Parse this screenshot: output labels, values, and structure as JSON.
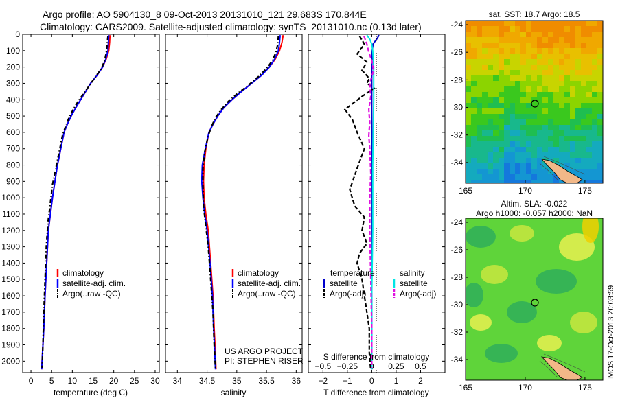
{
  "header": {
    "line1": "Argo profile: AO 5904130_8 09-Oct-2013 20131010_121 29.683S 170.844E",
    "line2": "Climatology: CARS2009. Satellite-adjusted climatology: synTS_20131010.nc (0.13d later)"
  },
  "colors": {
    "climatology": "#ff0000",
    "satellite": "#0000ff",
    "argo": "#000000",
    "t_satellite": "#0000cc",
    "s_satellite": "#00e5e5",
    "s_argo": "#e010e0"
  },
  "chart_data": [
    {
      "type": "line",
      "xlabel": "temperature (deg C)",
      "xlim": [
        -2,
        31
      ],
      "xticks": [
        0,
        5,
        10,
        15,
        20,
        25,
        30
      ],
      "ylim": [
        2070,
        0
      ],
      "yticks": [
        0,
        100,
        200,
        300,
        400,
        500,
        600,
        700,
        800,
        900,
        1000,
        1100,
        1200,
        1300,
        1400,
        1500,
        1600,
        1700,
        1800,
        1900,
        2000
      ],
      "legend": [
        "climatology",
        "satellite-adj. clim.",
        "Argo(..raw -QC)"
      ],
      "series": [
        {
          "name": "climatology",
          "color": "#ff0000",
          "style": "solid",
          "x": [
            19.1,
            19.0,
            18.8,
            18.2,
            17.3,
            16.0,
            14.4,
            13.2,
            12.0,
            10.8,
            9.7,
            8.8,
            8.0,
            7.2,
            6.4,
            5.8,
            5.2,
            4.7,
            4.2,
            3.8,
            3.4,
            3.1,
            2.8,
            2.6
          ],
          "y": [
            5,
            50,
            100,
            150,
            200,
            250,
            300,
            350,
            400,
            450,
            500,
            550,
            600,
            700,
            800,
            900,
            1000,
            1100,
            1200,
            1400,
            1600,
            1800,
            1950,
            2050
          ]
        },
        {
          "name": "satellite-adj. clim.",
          "color": "#0000ff",
          "style": "solid",
          "x": [
            18.8,
            18.7,
            18.6,
            18.1,
            17.3,
            16.0,
            14.4,
            13.2,
            12.0,
            10.8,
            9.7,
            8.8,
            8.0,
            7.2,
            6.4,
            5.8,
            5.2,
            4.7,
            4.2,
            3.8,
            3.4,
            3.1,
            2.8,
            2.6
          ],
          "y": [
            5,
            50,
            100,
            150,
            200,
            250,
            300,
            350,
            400,
            450,
            500,
            550,
            600,
            700,
            800,
            900,
            1000,
            1100,
            1200,
            1400,
            1600,
            1800,
            1950,
            2050
          ]
        },
        {
          "name": "Argo(..raw -QC)",
          "color": "#000000",
          "style": "dashdot",
          "x": [
            18.6,
            18.4,
            18.2,
            17.8,
            17.0,
            15.6,
            14.2,
            12.8,
            11.4,
            10.2,
            9.2,
            8.4,
            7.6,
            6.8,
            6.0,
            5.2,
            4.6,
            4.1,
            3.7,
            3.4,
            3.1,
            2.9,
            2.7
          ],
          "y": [
            10,
            60,
            110,
            160,
            210,
            260,
            310,
            360,
            410,
            460,
            510,
            560,
            620,
            720,
            820,
            920,
            1050,
            1150,
            1300,
            1500,
            1700,
            1900,
            2040
          ]
        }
      ]
    },
    {
      "type": "line",
      "xlabel": "salinity",
      "xlim": [
        33.8,
        36.1
      ],
      "xticks": [
        34,
        34.5,
        35,
        35.5,
        36
      ],
      "xticklabels": [
        "34",
        "34.5",
        "35",
        "35.5",
        "36"
      ],
      "ylim": [
        2070,
        0
      ],
      "legend": [
        "climatology",
        "satellite-adj. clim.",
        "Argo(..raw -QC)"
      ],
      "annotation": [
        "US ARGO PROJECT",
        "PI: STEPHEN RISER"
      ],
      "series": [
        {
          "name": "climatology",
          "color": "#ff0000",
          "style": "solid",
          "x": [
            35.78,
            35.76,
            35.72,
            35.65,
            35.55,
            35.42,
            35.25,
            35.08,
            34.92,
            34.78,
            34.68,
            34.6,
            34.53,
            34.48,
            34.45,
            34.44,
            34.45,
            34.48,
            34.52,
            34.56,
            34.6,
            34.62,
            34.64,
            34.65
          ],
          "y": [
            5,
            50,
            100,
            150,
            200,
            250,
            300,
            350,
            400,
            450,
            500,
            550,
            600,
            700,
            800,
            900,
            1000,
            1100,
            1200,
            1400,
            1600,
            1800,
            1950,
            2050
          ]
        },
        {
          "name": "satellite-adj. clim.",
          "color": "#0000ff",
          "style": "solid",
          "x": [
            35.73,
            35.72,
            35.7,
            35.64,
            35.55,
            35.42,
            35.25,
            35.08,
            34.92,
            34.78,
            34.68,
            34.6,
            34.53,
            34.47,
            34.42,
            34.41,
            34.43,
            34.46,
            34.5,
            34.55,
            34.59,
            34.61,
            34.63,
            34.64
          ],
          "y": [
            5,
            50,
            100,
            150,
            200,
            250,
            300,
            350,
            400,
            450,
            500,
            550,
            600,
            700,
            800,
            900,
            1000,
            1100,
            1200,
            1400,
            1600,
            1800,
            1950,
            2050
          ]
        },
        {
          "name": "Argo(..raw -QC)",
          "color": "#000000",
          "style": "dashdot",
          "x": [
            35.7,
            35.69,
            35.66,
            35.6,
            35.5,
            35.36,
            35.2,
            35.02,
            34.86,
            34.74,
            34.64,
            34.58,
            34.52,
            34.46,
            34.43,
            34.43,
            34.44,
            34.47,
            34.52,
            34.56,
            34.6,
            34.62,
            34.64
          ],
          "y": [
            10,
            60,
            110,
            160,
            210,
            260,
            310,
            360,
            410,
            460,
            510,
            560,
            620,
            720,
            820,
            920,
            1050,
            1150,
            1300,
            1500,
            1700,
            1900,
            2040
          ]
        }
      ]
    },
    {
      "type": "line",
      "xlabel": "T difference from climatology",
      "xlabel2": "S difference from climatology",
      "xlim": [
        -2.6,
        3.0
      ],
      "xticks": [
        -2,
        -1,
        0,
        1,
        2
      ],
      "xticklabels": [
        "−2",
        "−1",
        "0",
        "1",
        "2"
      ],
      "xlim_top": [
        -0.65,
        0.75
      ],
      "xticks_top": [
        -0.5,
        -0.25,
        0,
        0.25,
        0.5
      ],
      "xticklabels_top": [
        "−0.5",
        "−0.25",
        "0",
        "0.25",
        "0.5"
      ],
      "ylim": [
        2070,
        0
      ],
      "legend_temperature_title": "temperature",
      "legend_salinity_title": "salinity",
      "legend_temperature": [
        "satellite",
        "Argo(-adj)"
      ],
      "legend_salinity": [
        "satellite",
        "Argo(-adj)"
      ],
      "series": [
        {
          "name": "temperature satellite",
          "color": "#0000cc",
          "style": "solid",
          "x": [
            0.3,
            0.2,
            0.05,
            0.02,
            0.0,
            0.0,
            0.0,
            0.0,
            0.0,
            0.0,
            0.0
          ],
          "y": [
            5,
            30,
            60,
            100,
            200,
            400,
            800,
            1200,
            1600,
            2000,
            2050
          ]
        },
        {
          "name": "temperature Argo(-adj)",
          "color": "#000000",
          "style": "dashed",
          "x": [
            -0.5,
            -0.3,
            -0.6,
            -0.2,
            -0.4,
            -0.1,
            -0.2,
            0.1,
            -0.4,
            -1.1,
            -0.8,
            -0.6,
            -0.3,
            -0.6,
            -0.9,
            -0.7,
            -0.3,
            -0.4,
            -0.2,
            -0.5,
            -0.6,
            -0.4,
            -0.3,
            -0.2,
            -0.1,
            -0.1,
            -0.05
          ],
          "y": [
            10,
            60,
            120,
            170,
            220,
            270,
            300,
            330,
            380,
            460,
            520,
            600,
            700,
            820,
            950,
            1050,
            1120,
            1200,
            1280,
            1340,
            1400,
            1500,
            1600,
            1700,
            1800,
            1950,
            2040
          ]
        },
        {
          "name": "salinity satellite",
          "color": "#00e5e5",
          "style": "solid",
          "x": [
            -0.05,
            -0.02,
            0.0,
            0.01,
            0.02,
            0.02,
            0.01,
            0.01,
            0.0,
            0.0,
            0.0
          ],
          "y": [
            5,
            30,
            60,
            100,
            200,
            400,
            800,
            1200,
            1600,
            2000,
            2050
          ]
        },
        {
          "name": "salinity Argo(-adj)",
          "color": "#e010e0",
          "style": "dashed",
          "x": [
            -0.08,
            -0.05,
            -0.03,
            0.0,
            0.02,
            -0.02,
            -0.01,
            -0.03,
            -0.02,
            -0.03,
            -0.02,
            -0.01,
            -0.02,
            -0.02,
            -0.01,
            0.0,
            0.0
          ],
          "y": [
            10,
            60,
            110,
            160,
            220,
            300,
            380,
            460,
            540,
            620,
            700,
            850,
            1000,
            1200,
            1500,
            1800,
            2040
          ]
        }
      ]
    }
  ],
  "maps": [
    {
      "title": "sat. SST: 18.7 Argo: 18.5",
      "xticks": [
        165,
        170,
        175
      ],
      "yticks": [
        -24,
        -26,
        -28,
        -30,
        -32,
        -34
      ],
      "lonlim": [
        165,
        176.5
      ],
      "latlim": [
        -35.5,
        -23.7
      ]
    },
    {
      "title1": "Altim. SLA: -0.022",
      "title2": "Argo h1000: -0.057 h2000: NaN",
      "xticks": [
        165,
        170,
        175
      ],
      "yticks": [
        -24,
        -26,
        -28,
        -30,
        -32,
        -34
      ],
      "lonlim": [
        165,
        176.5
      ],
      "latlim": [
        -35.5,
        -23.7
      ]
    }
  ],
  "float_position": {
    "lon": 170.844,
    "lat": -29.683
  },
  "stamp": "IMOS 17-Oct-2013 20:03:59"
}
